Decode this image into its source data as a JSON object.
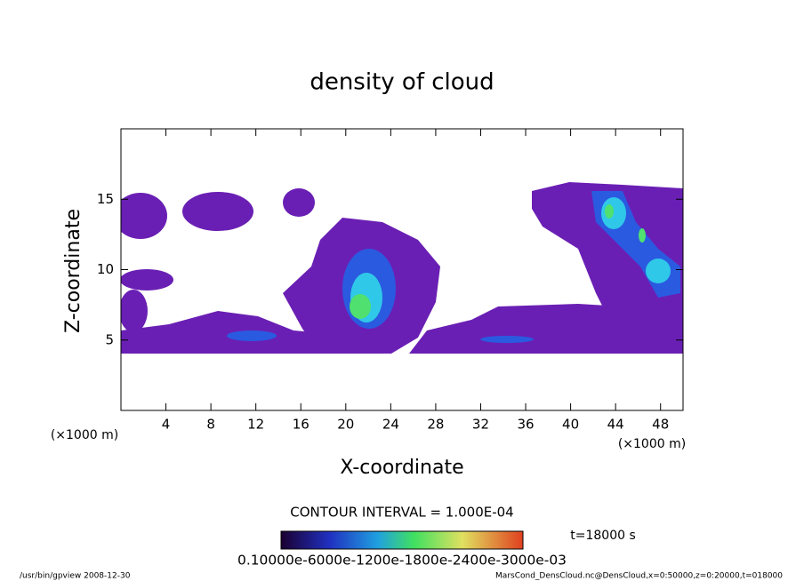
{
  "chart_data": {
    "type": "contour",
    "title": "density of cloud",
    "x_label": "X-coordinate",
    "y_label": "Z-coordinate",
    "x_unit_label": "(×1000 m)",
    "xlim": [
      0,
      50
    ],
    "ylim": [
      0,
      20
    ],
    "xticks": [
      4,
      8,
      12,
      16,
      20,
      24,
      28,
      32,
      36,
      40,
      44,
      48
    ],
    "yticks": [
      5,
      10,
      15
    ],
    "contour_interval": "CONTOUR INTERVAL = 1.000E-04",
    "colorbar_labels": "0.10000e-6000e-1200e-1800e-2400e-3000e-03",
    "time_label": "t=18000 s",
    "footer_left": "/usr/bin/gpview   2008-12-30",
    "footer_right": "MarsCond_DensCloud.nc@DensCloud,x=0:50000,z=0:20000,t=018000"
  }
}
